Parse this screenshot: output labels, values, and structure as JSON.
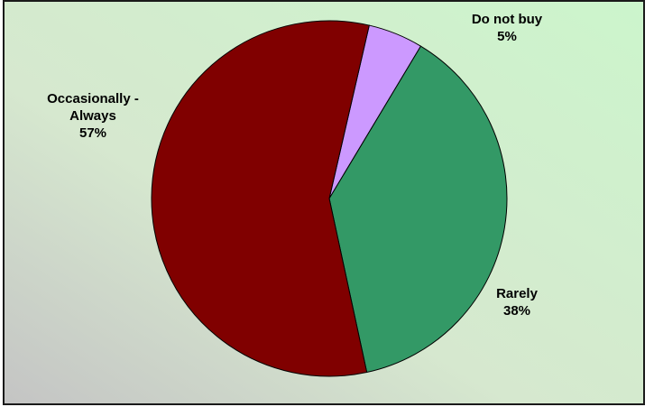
{
  "chart_data": {
    "type": "pie",
    "title": "",
    "slices": [
      {
        "label_lines": [
          "Do not buy"
        ],
        "percent_label": "5%",
        "value": 5,
        "color": "#cc99ff"
      },
      {
        "label_lines": [
          "Rarely"
        ],
        "percent_label": "38%",
        "value": 38,
        "color": "#339966"
      },
      {
        "label_lines": [
          "Occasionally -",
          "Always"
        ],
        "percent_label": "57%",
        "value": 57,
        "color": "#800000"
      }
    ],
    "legend": "none",
    "background": "gradient"
  }
}
